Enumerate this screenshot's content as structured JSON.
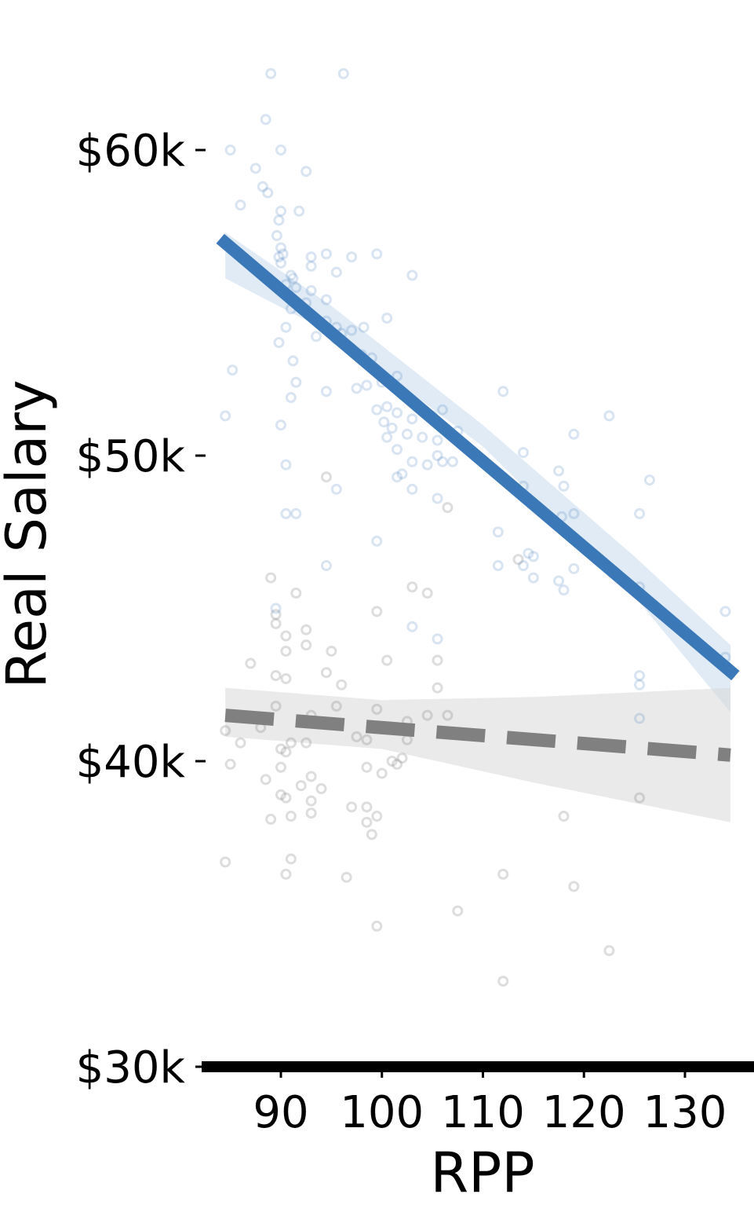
{
  "chart_data": {
    "type": "scatter",
    "title": "",
    "xlabel": "RPP",
    "ylabel": "Real Salary",
    "xlim": [
      82,
      137
    ],
    "ylim": [
      30000,
      64500
    ],
    "x_ticks": [
      90,
      100,
      110,
      120,
      130
    ],
    "x_tick_labels": [
      "90",
      "100",
      "110",
      "120",
      "130"
    ],
    "y_ticks": [
      30000,
      40000,
      50000,
      60000
    ],
    "y_tick_labels": [
      "$30k",
      "$40k",
      "$50k",
      "$60k"
    ],
    "grid": false,
    "legend": "none",
    "series": [
      {
        "color": "#3a78b7",
        "point_opacity": 0.15,
        "points": [
          [
            89,
            62500
          ],
          [
            96.2,
            62500
          ],
          [
            88.5,
            61000
          ],
          [
            85,
            60000
          ],
          [
            90,
            60000
          ],
          [
            87.5,
            59400
          ],
          [
            92.5,
            59300
          ],
          [
            88.2,
            58800
          ],
          [
            88.7,
            58600
          ],
          [
            86,
            58200
          ],
          [
            90,
            58000
          ],
          [
            91.8,
            58000
          ],
          [
            89.8,
            57700
          ],
          [
            89.6,
            57200
          ],
          [
            90,
            56800
          ],
          [
            90.2,
            56600
          ],
          [
            89.8,
            56500
          ],
          [
            93,
            56500
          ],
          [
            94.5,
            56600
          ],
          [
            97,
            56500
          ],
          [
            99.5,
            56600
          ],
          [
            90,
            56300
          ],
          [
            91,
            55900
          ],
          [
            91.2,
            55800
          ],
          [
            93,
            56200
          ],
          [
            95.5,
            56000
          ],
          [
            103,
            55900
          ],
          [
            90.5,
            55600
          ],
          [
            91.5,
            55500
          ],
          [
            93,
            55400
          ],
          [
            94.5,
            55100
          ],
          [
            92.5,
            55000
          ],
          [
            91,
            54800
          ],
          [
            93,
            54600
          ],
          [
            94.5,
            54400
          ],
          [
            95.5,
            54200
          ],
          [
            96,
            54000
          ],
          [
            97,
            54100
          ],
          [
            98.2,
            54200
          ],
          [
            100.5,
            54500
          ],
          [
            90.5,
            54200
          ],
          [
            89.8,
            53700
          ],
          [
            93.5,
            53900
          ],
          [
            95.5,
            53800
          ],
          [
            97,
            53500
          ],
          [
            98,
            53300
          ],
          [
            99,
            53200
          ],
          [
            91.2,
            53100
          ],
          [
            85.2,
            52800
          ],
          [
            91.5,
            52400
          ],
          [
            94.5,
            52100
          ],
          [
            97.5,
            52200
          ],
          [
            98.5,
            52300
          ],
          [
            100,
            52400
          ],
          [
            101.5,
            52600
          ],
          [
            112,
            52100
          ],
          [
            91,
            51900
          ],
          [
            99.5,
            51500
          ],
          [
            100.5,
            51600
          ],
          [
            101.5,
            51400
          ],
          [
            103,
            51200
          ],
          [
            105,
            51300
          ],
          [
            106,
            51500
          ],
          [
            84.5,
            51300
          ],
          [
            90,
            51000
          ],
          [
            100.2,
            51100
          ],
          [
            101,
            50900
          ],
          [
            102.5,
            50700
          ],
          [
            104,
            50600
          ],
          [
            105.5,
            50500
          ],
          [
            107.5,
            50800
          ],
          [
            119,
            50700
          ],
          [
            122.5,
            51300
          ],
          [
            100.5,
            50600
          ],
          [
            101.5,
            50200
          ],
          [
            105.5,
            50000
          ],
          [
            114,
            50100
          ],
          [
            90.5,
            49700
          ],
          [
            103,
            49800
          ],
          [
            104.5,
            49700
          ],
          [
            106,
            49800
          ],
          [
            107,
            49800
          ],
          [
            117.5,
            49500
          ],
          [
            101.5,
            49300
          ],
          [
            102,
            49400
          ],
          [
            103,
            48900
          ],
          [
            95.5,
            48900
          ],
          [
            105.5,
            48600
          ],
          [
            114,
            49000
          ],
          [
            118,
            49000
          ],
          [
            119,
            48100
          ],
          [
            126.5,
            49200
          ],
          [
            90.5,
            48100
          ],
          [
            91.5,
            48100
          ],
          [
            117.8,
            48000
          ],
          [
            125.5,
            48100
          ],
          [
            99.5,
            47200
          ],
          [
            111.5,
            47500
          ],
          [
            114.5,
            46800
          ],
          [
            111.5,
            46400
          ],
          [
            114,
            46400
          ],
          [
            115,
            46700
          ],
          [
            119,
            46300
          ],
          [
            94.5,
            46400
          ],
          [
            115,
            46000
          ],
          [
            117.5,
            45900
          ],
          [
            118,
            45600
          ],
          [
            125.5,
            45700
          ],
          [
            89.5,
            45000
          ],
          [
            103,
            44400
          ],
          [
            105.5,
            44000
          ],
          [
            134,
            44900
          ],
          [
            134,
            43400
          ],
          [
            125.5,
            42800
          ],
          [
            125.5,
            42500
          ],
          [
            125.5,
            41400
          ]
        ]
      },
      {
        "color": "#808080",
        "point_opacity": 0.22,
        "points": [
          [
            94.5,
            49300
          ],
          [
            106.5,
            48300
          ],
          [
            113.5,
            46600
          ],
          [
            89,
            46000
          ],
          [
            91.5,
            45500
          ],
          [
            103,
            45700
          ],
          [
            104.5,
            45500
          ],
          [
            89.5,
            44800
          ],
          [
            89.5,
            44500
          ],
          [
            90.5,
            44100
          ],
          [
            92.5,
            44300
          ],
          [
            99.5,
            44900
          ],
          [
            90.5,
            43600
          ],
          [
            92.5,
            43800
          ],
          [
            95,
            43600
          ],
          [
            87,
            43200
          ],
          [
            89.5,
            42800
          ],
          [
            90.5,
            42700
          ],
          [
            94.5,
            42900
          ],
          [
            96,
            42500
          ],
          [
            100.5,
            43300
          ],
          [
            105.5,
            43300
          ],
          [
            105.5,
            42400
          ],
          [
            84.5,
            41000
          ],
          [
            89.5,
            41800
          ],
          [
            93,
            41500
          ],
          [
            95.5,
            41800
          ],
          [
            99.5,
            41700
          ],
          [
            102.5,
            41300
          ],
          [
            104.5,
            41500
          ],
          [
            106.5,
            41500
          ],
          [
            88,
            41100
          ],
          [
            91,
            40600
          ],
          [
            92.5,
            40600
          ],
          [
            97.5,
            40800
          ],
          [
            98.5,
            40700
          ],
          [
            102.5,
            40700
          ],
          [
            86,
            40600
          ],
          [
            90,
            40400
          ],
          [
            90.5,
            40300
          ],
          [
            101,
            40000
          ],
          [
            101.5,
            39900
          ],
          [
            102,
            40100
          ],
          [
            85,
            39900
          ],
          [
            90,
            39800
          ],
          [
            93,
            39500
          ],
          [
            98.5,
            39800
          ],
          [
            100,
            39600
          ],
          [
            88.5,
            39400
          ],
          [
            92,
            39200
          ],
          [
            94,
            39100
          ],
          [
            90,
            38900
          ],
          [
            90.5,
            38800
          ],
          [
            93,
            38700
          ],
          [
            93,
            38300
          ],
          [
            97,
            38500
          ],
          [
            98.5,
            38500
          ],
          [
            99.5,
            38200
          ],
          [
            89,
            38100
          ],
          [
            91,
            38200
          ],
          [
            98.5,
            38000
          ],
          [
            99,
            37600
          ],
          [
            118,
            38200
          ],
          [
            125.5,
            38800
          ],
          [
            84.5,
            36700
          ],
          [
            91,
            36800
          ],
          [
            90.5,
            36300
          ],
          [
            96.5,
            36200
          ],
          [
            112,
            36300
          ],
          [
            119,
            35900
          ],
          [
            107.5,
            35100
          ],
          [
            99.5,
            34600
          ],
          [
            122.5,
            33800
          ],
          [
            112,
            32800
          ]
        ]
      }
    ],
    "trend_lines": [
      {
        "series": 0,
        "x": [
          84,
          135
        ],
        "y": [
          57100,
          42800
        ],
        "dash": false,
        "band_upper": [
          [
            84.5,
            57300
          ],
          [
            95,
            54900
          ],
          [
            110,
            51000
          ],
          [
            125,
            46700
          ],
          [
            134.5,
            43800
          ]
        ],
        "band_lower": [
          [
            84.5,
            55800
          ],
          [
            95,
            54000
          ],
          [
            110,
            50300
          ],
          [
            125,
            45400
          ],
          [
            134.5,
            41600
          ]
        ]
      },
      {
        "series": 1,
        "x": [
          84.5,
          134.5
        ],
        "y": [
          41500,
          40200
        ],
        "dash": true,
        "band_upper": [
          [
            84.5,
            42400
          ],
          [
            100,
            42000
          ],
          [
            115,
            42100
          ],
          [
            134.5,
            42400
          ]
        ],
        "band_lower": [
          [
            84.5,
            40800
          ],
          [
            100,
            40400
          ],
          [
            115,
            39300
          ],
          [
            134.5,
            38000
          ]
        ]
      }
    ]
  }
}
